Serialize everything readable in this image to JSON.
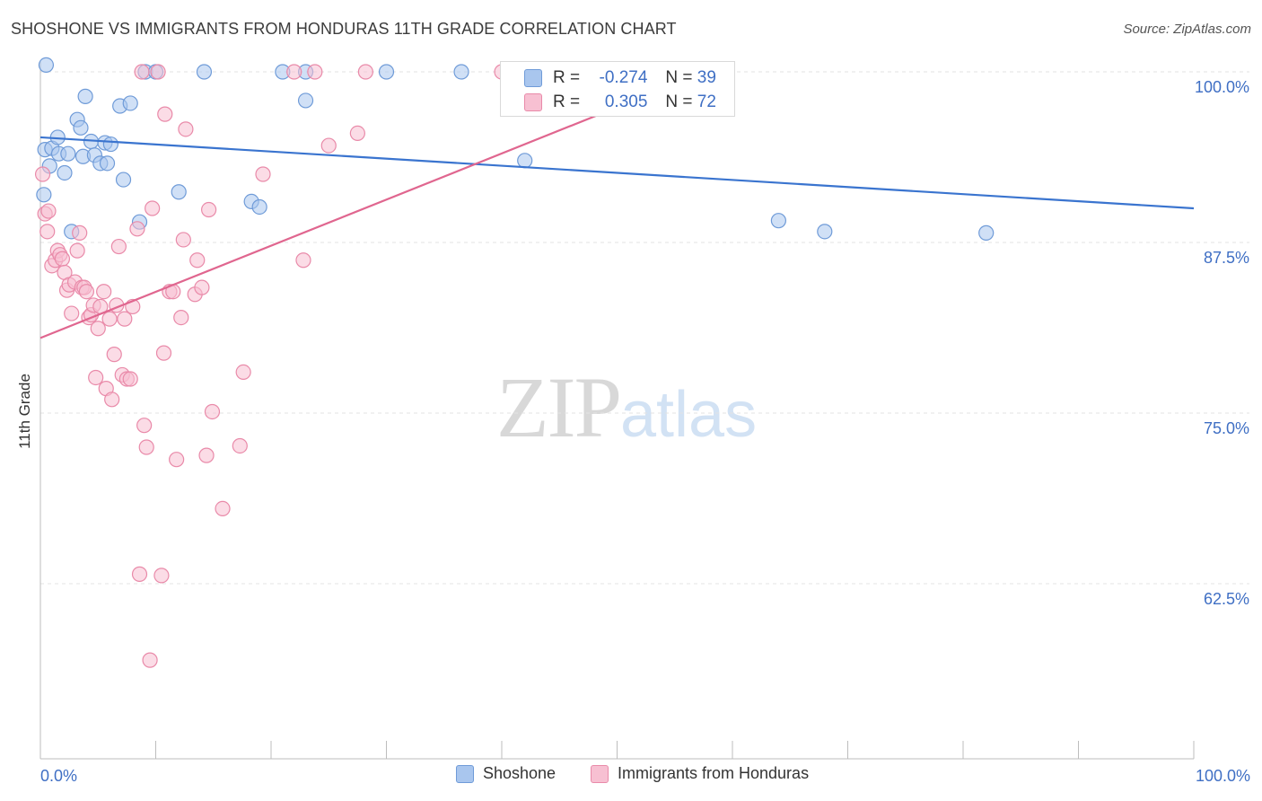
{
  "title": "SHOSHONE VS IMMIGRANTS FROM HONDURAS 11TH GRADE CORRELATION CHART",
  "source": "Source: ZipAtlas.com",
  "watermark": {
    "zip": "ZIP",
    "atlas": "atlas"
  },
  "stats": [
    {
      "r_label": "R =",
      "r_value": "-0.274",
      "n_label": "N =",
      "n_value": "39",
      "color": "#a9c6ee",
      "border": "#6f9bd8"
    },
    {
      "r_label": "R =",
      "r_value": "0.305",
      "n_label": "N =",
      "n_value": "72",
      "color": "#f7c0d2",
      "border": "#e98aa9"
    }
  ],
  "legend": [
    {
      "label": "Shoshone",
      "color": "#a9c6ee",
      "border": "#6f9bd8"
    },
    {
      "label": "Immigrants from Honduras",
      "color": "#f7c0d2",
      "border": "#e98aa9"
    }
  ],
  "chart_data": {
    "type": "scatter",
    "title": "SHOSHONE VS IMMIGRANTS FROM HONDURAS 11TH GRADE CORRELATION CHART",
    "xlabel": "",
    "ylabel": "11th Grade",
    "xlim": [
      0,
      100
    ],
    "ylim": [
      51.5,
      101.2
    ],
    "x_tick_labels": [
      "0.0%",
      "100.0%"
    ],
    "y_ticks": [
      {
        "value": 100,
        "label": "100.0%"
      },
      {
        "value": 87.5,
        "label": "87.5%"
      },
      {
        "value": 75,
        "label": "75.0%"
      },
      {
        "value": 62.5,
        "label": "62.5%"
      }
    ],
    "grid": true,
    "legend_position": "bottom",
    "series": [
      {
        "name": "Shoshone",
        "color": "#a9c6ee",
        "stroke": "#6f9bd8",
        "line_color": "#3a74cf",
        "trend": {
          "x": [
            0,
            100
          ],
          "y": [
            95.2,
            90.0
          ]
        },
        "points": [
          [
            0.3,
            91.0
          ],
          [
            0.4,
            94.3
          ],
          [
            0.8,
            93.1
          ],
          [
            1.0,
            94.4
          ],
          [
            1.5,
            95.2
          ],
          [
            1.6,
            94.0
          ],
          [
            2.1,
            92.6
          ],
          [
            2.4,
            94.0
          ],
          [
            2.7,
            88.3
          ],
          [
            3.2,
            96.5
          ],
          [
            3.5,
            95.9
          ],
          [
            3.7,
            93.8
          ],
          [
            3.9,
            98.2
          ],
          [
            4.4,
            94.9
          ],
          [
            4.7,
            93.9
          ],
          [
            5.2,
            93.3
          ],
          [
            5.6,
            94.8
          ],
          [
            5.8,
            93.3
          ],
          [
            6.1,
            94.7
          ],
          [
            6.9,
            97.5
          ],
          [
            7.2,
            92.1
          ],
          [
            7.8,
            97.7
          ],
          [
            8.6,
            89.0
          ],
          [
            9.1,
            100.0
          ],
          [
            10.0,
            100.0
          ],
          [
            12.0,
            91.2
          ],
          [
            14.2,
            100.0
          ],
          [
            18.3,
            90.5
          ],
          [
            19.0,
            90.1
          ],
          [
            21.0,
            100.0
          ],
          [
            23.0,
            100.0
          ],
          [
            23.0,
            97.9
          ],
          [
            30.0,
            100.0
          ],
          [
            36.5,
            100.0
          ],
          [
            42.0,
            93.5
          ],
          [
            64.0,
            89.1
          ],
          [
            68.0,
            88.3
          ],
          [
            82.0,
            88.2
          ],
          [
            0.5,
            100.5
          ]
        ]
      },
      {
        "name": "Immigrants from Honduras",
        "color": "#f7c0d2",
        "stroke": "#e98aa9",
        "line_color": "#e0668f",
        "trend": {
          "x": [
            0,
            50
          ],
          "y": [
            80.5,
            97.4
          ]
        },
        "points": [
          [
            0.2,
            92.5
          ],
          [
            0.4,
            89.6
          ],
          [
            0.6,
            88.3
          ],
          [
            0.7,
            89.8
          ],
          [
            1.0,
            85.8
          ],
          [
            1.3,
            86.2
          ],
          [
            1.5,
            86.9
          ],
          [
            1.7,
            86.6
          ],
          [
            1.9,
            86.3
          ],
          [
            2.1,
            85.3
          ],
          [
            2.3,
            84.0
          ],
          [
            2.5,
            84.4
          ],
          [
            2.7,
            82.3
          ],
          [
            3.0,
            84.6
          ],
          [
            3.2,
            86.9
          ],
          [
            3.4,
            88.2
          ],
          [
            3.6,
            84.2
          ],
          [
            3.8,
            84.2
          ],
          [
            4.0,
            83.9
          ],
          [
            4.2,
            82.0
          ],
          [
            4.4,
            82.2
          ],
          [
            4.6,
            82.9
          ],
          [
            4.8,
            77.6
          ],
          [
            5.0,
            81.2
          ],
          [
            5.2,
            82.8
          ],
          [
            5.5,
            83.9
          ],
          [
            5.7,
            76.8
          ],
          [
            6.0,
            81.9
          ],
          [
            6.2,
            76.0
          ],
          [
            6.4,
            79.3
          ],
          [
            6.6,
            82.9
          ],
          [
            6.8,
            87.2
          ],
          [
            7.1,
            77.8
          ],
          [
            7.3,
            81.9
          ],
          [
            7.5,
            77.5
          ],
          [
            7.8,
            77.5
          ],
          [
            8.0,
            82.8
          ],
          [
            8.4,
            88.5
          ],
          [
            8.6,
            63.2
          ],
          [
            8.8,
            100.0
          ],
          [
            9.0,
            74.1
          ],
          [
            9.2,
            72.5
          ],
          [
            9.5,
            56.9
          ],
          [
            9.7,
            90.0
          ],
          [
            10.2,
            100.0
          ],
          [
            10.5,
            63.1
          ],
          [
            10.7,
            79.4
          ],
          [
            10.8,
            96.9
          ],
          [
            11.2,
            83.9
          ],
          [
            11.5,
            83.9
          ],
          [
            11.8,
            71.6
          ],
          [
            12.2,
            82.0
          ],
          [
            12.4,
            87.7
          ],
          [
            12.6,
            95.8
          ],
          [
            13.4,
            83.7
          ],
          [
            13.6,
            86.2
          ],
          [
            14.0,
            84.2
          ],
          [
            14.4,
            71.9
          ],
          [
            14.6,
            89.9
          ],
          [
            14.9,
            75.1
          ],
          [
            15.8,
            68.0
          ],
          [
            17.3,
            72.6
          ],
          [
            17.6,
            78.0
          ],
          [
            19.3,
            92.5
          ],
          [
            22.0,
            100.0
          ],
          [
            22.8,
            86.2
          ],
          [
            23.8,
            100.0
          ],
          [
            25.0,
            94.6
          ],
          [
            27.5,
            95.5
          ],
          [
            28.2,
            100.0
          ],
          [
            40.0,
            100.0
          ],
          [
            41.0,
            100.0
          ]
        ]
      }
    ]
  }
}
